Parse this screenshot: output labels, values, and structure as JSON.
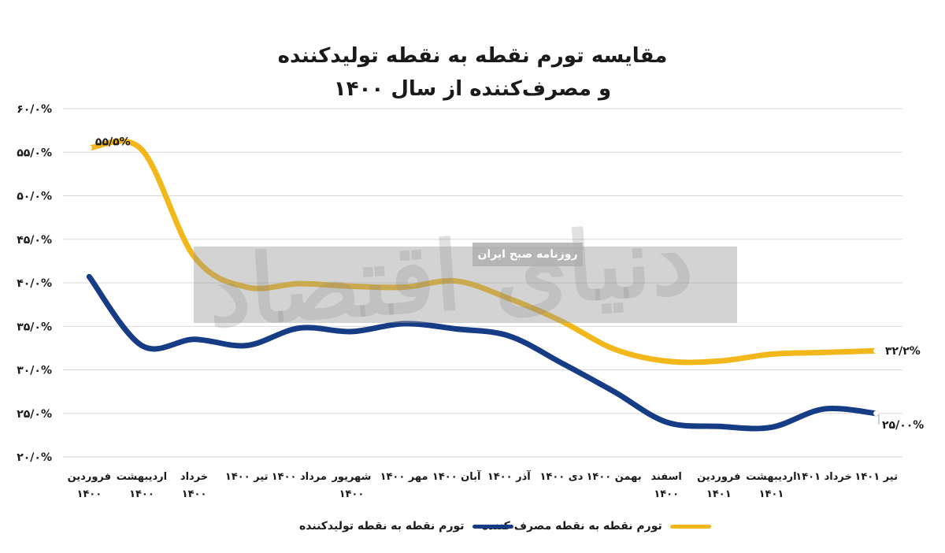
{
  "title": {
    "line1": "مقایسه تورم نقطه به نقطه تولیدکننده",
    "line2": "و مصرف‌کننده از سال ۱۴۰۰"
  },
  "watermark": {
    "logo_text": "دنیای اقتصاد",
    "badge": "روزنامه صبح ایران"
  },
  "colors": {
    "producer": "#173c86",
    "consumer": "#f2b71a",
    "grid": "#d9d9d9"
  },
  "chart_data": {
    "type": "line",
    "title": "مقایسه تورم نقطه به نقطه تولیدکننده و مصرف‌کننده از سال ۱۴۰۰",
    "categories": [
      [
        "فروردین",
        "۱۴۰۰"
      ],
      [
        "اردیبهشت",
        "۱۴۰۰"
      ],
      [
        "خرداد",
        "۱۴۰۰"
      ],
      [
        "تیر ۱۴۰۰"
      ],
      [
        "مرداد ۱۴۰۰"
      ],
      [
        "شهریور",
        "۱۴۰۰"
      ],
      [
        "مهر ۱۴۰۰"
      ],
      [
        "آبان ۱۴۰۰"
      ],
      [
        "آذر ۱۴۰۰"
      ],
      [
        "دی ۱۴۰۰"
      ],
      [
        "بهمن ۱۴۰۰"
      ],
      [
        "اسفند",
        "۱۴۰۰"
      ],
      [
        "فروردین",
        "۱۴۰۱"
      ],
      [
        "اردیبهشت",
        "۱۴۰۱"
      ],
      [
        "خرداد ۱۴۰۱"
      ],
      [
        "تیر ۱۴۰۱"
      ]
    ],
    "series": [
      {
        "name": "تورم نقطه به نقطه تولیدکننده",
        "color": "#173c86",
        "values": [
          40.7,
          32.8,
          33.5,
          32.8,
          34.8,
          34.4,
          35.3,
          34.7,
          33.9,
          30.8,
          27.5,
          24.0,
          23.5,
          23.4,
          25.5,
          25.0
        ],
        "last_label": "۲۵/۰۰%"
      },
      {
        "name": "تورم نقطه به نقطه مصرف کننده",
        "color": "#f2b71a",
        "values": [
          55.5,
          55.3,
          43.0,
          39.5,
          39.9,
          39.6,
          39.5,
          40.2,
          38.2,
          35.6,
          32.4,
          31.0,
          31.0,
          31.8,
          32.0,
          32.2
        ],
        "first_label": "۵۵/۵%",
        "last_label": "۳۲/۲%"
      }
    ],
    "y_ticks": [
      "۲۰/۰%",
      "۲۵/۰%",
      "۳۰/۰%",
      "۳۵/۰%",
      "۴۰/۰%",
      "۴۵/۰%",
      "۵۰/۰%",
      "۵۵/۰%",
      "۶۰/۰%"
    ],
    "ylim": [
      20,
      60
    ],
    "y_step": 5,
    "grid": true,
    "legend_position": "bottom"
  }
}
